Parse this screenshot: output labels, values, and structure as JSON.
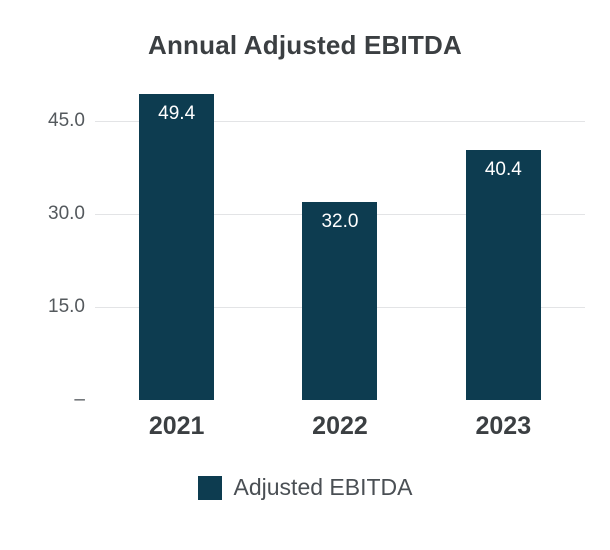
{
  "chart_data": {
    "type": "bar",
    "title": "Annual Adjusted EBITDA",
    "categories": [
      "2021",
      "2022",
      "2023"
    ],
    "series": [
      {
        "name": "Adjusted EBITDA",
        "values": [
          49.4,
          32.0,
          40.4
        ]
      }
    ],
    "value_labels": [
      "49.4",
      "32.0",
      "40.4"
    ],
    "ylim": [
      0,
      50
    ],
    "yticks": [
      {
        "value": 45,
        "label": "45.0"
      },
      {
        "value": 30,
        "label": "30.0"
      },
      {
        "value": 15,
        "label": "15.0"
      },
      {
        "value": 0,
        "label": "–"
      }
    ],
    "grid": "horizontal",
    "legend": {
      "position": "bottom",
      "label": "Adjusted EBITDA"
    },
    "bar_color": "#0d3c50",
    "value_label_color": "#ffffff",
    "xlabel": "",
    "ylabel": ""
  }
}
